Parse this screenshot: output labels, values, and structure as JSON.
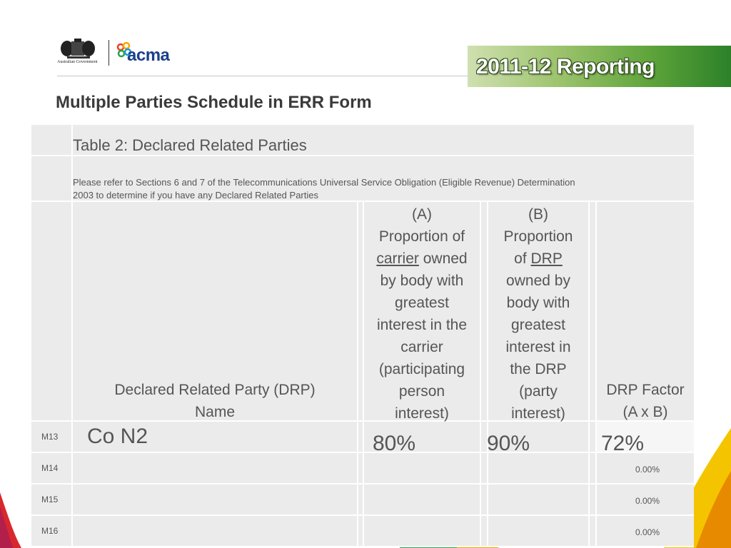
{
  "header": {
    "gov_logo_text": "Australian Government",
    "acma_logo_text": "acma",
    "banner": "2011-12 Reporting"
  },
  "slide_title": "Multiple Parties Schedule in ERR Form",
  "table": {
    "caption": "Table 2:  Declared Related Parties",
    "note_line1": "Please refer to Sections 6 and 7 of the Telecommunications Universal Service Obligation (Eligible Revenue) Determination",
    "note_line2": "2003 to determine if you have any Declared Related Parties",
    "columns": {
      "name": [
        "Declared Related Party (DRP)",
        "Name"
      ],
      "a": {
        "l1": "(A)",
        "l2": "Proportion of",
        "l3_u": "carrier",
        "l3_rest": " owned",
        "l4": "by body with",
        "l5": "greatest",
        "l6": "interest in the",
        "l7": "carrier",
        "l8": "(participating",
        "l9": "person",
        "l10": "interest)"
      },
      "b": {
        "l1": "(B)",
        "l2": "Proportion",
        "l3_pre": "of ",
        "l3_u": "DRP",
        "l4": "owned by",
        "l5": "body with",
        "l6": "greatest",
        "l7": "interest in",
        "l8": "the DRP",
        "l9": "(party",
        "l10": "interest)"
      },
      "factor": [
        "DRP Factor",
        "(A x B)"
      ]
    },
    "rows": [
      {
        "label": "M13",
        "name": "Co N2",
        "a": "80%",
        "b": "90%",
        "factor": "72%"
      },
      {
        "label": "M14",
        "name": "",
        "a": "",
        "b": "",
        "factor": "0.00%"
      },
      {
        "label": "M15",
        "name": "",
        "a": "",
        "b": "",
        "factor": "0.00%"
      },
      {
        "label": "M16",
        "name": "",
        "a": "",
        "b": "",
        "factor": "0.00%"
      }
    ]
  }
}
